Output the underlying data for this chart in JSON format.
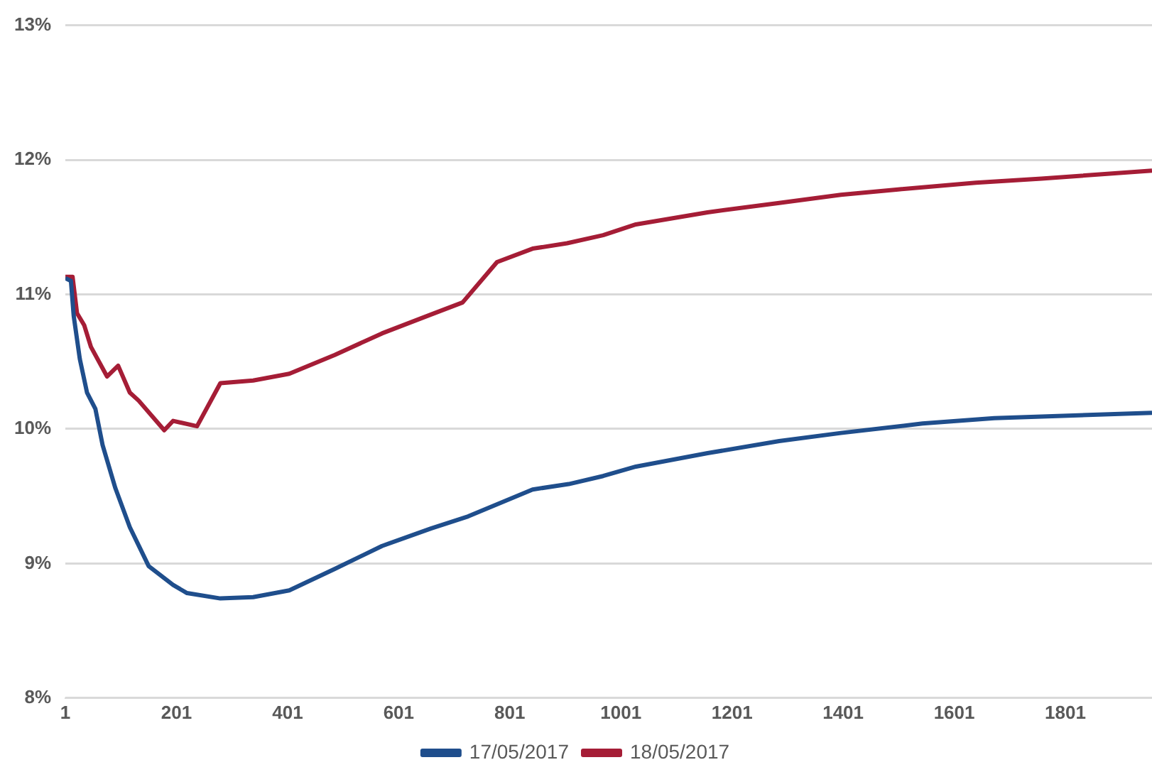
{
  "chart_data": {
    "type": "line",
    "xlim": [
      1,
      1957
    ],
    "xticks": [
      1,
      201,
      401,
      601,
      801,
      1001,
      1201,
      1401,
      1601,
      1801
    ],
    "ylim": [
      8,
      13
    ],
    "yticks": [
      {
        "value": 8,
        "label": "8%"
      },
      {
        "value": 9,
        "label": "9%"
      },
      {
        "value": 10,
        "label": "10%"
      },
      {
        "value": 11,
        "label": "11%"
      },
      {
        "value": 12,
        "label": "12%"
      },
      {
        "value": 13,
        "label": "13%"
      }
    ],
    "grid": "y",
    "legend": "bottom",
    "marker": "none",
    "line_style": "solid",
    "series": [
      {
        "name": "17/05/2017",
        "color": "#1f4e8c",
        "x": [
          1,
          11,
          16,
          27,
          40,
          55,
          68,
          91,
          117,
          151,
          195,
          220,
          280,
          339,
          404,
          486,
          571,
          659,
          726,
          842,
          907,
          969,
          1028,
          1157,
          1286,
          1397,
          1544,
          1673,
          1957
        ],
        "values": [
          11.12,
          11.1,
          10.84,
          10.52,
          10.27,
          10.15,
          9.88,
          9.56,
          9.27,
          8.98,
          8.84,
          8.78,
          8.74,
          8.75,
          8.8,
          8.96,
          9.13,
          9.26,
          9.35,
          9.55,
          9.59,
          9.65,
          9.72,
          9.82,
          9.91,
          9.97,
          10.04,
          10.08,
          10.12
        ]
      },
      {
        "name": "18/05/2017",
        "color": "#a51d36",
        "x": [
          1,
          14,
          22,
          35,
          47,
          76,
          96,
          117,
          133,
          179,
          195,
          238,
          280,
          339,
          404,
          486,
          571,
          659,
          716,
          778,
          842,
          904,
          969,
          1028,
          1157,
          1286,
          1397,
          1500,
          1640,
          1758,
          1957
        ],
        "values": [
          11.13,
          11.13,
          10.86,
          10.77,
          10.61,
          10.39,
          10.47,
          10.27,
          10.21,
          9.99,
          10.06,
          10.02,
          10.34,
          10.36,
          10.41,
          10.55,
          10.71,
          10.85,
          10.94,
          11.24,
          11.34,
          11.38,
          11.44,
          11.52,
          11.61,
          11.68,
          11.74,
          11.78,
          11.83,
          11.86,
          11.92
        ]
      }
    ]
  }
}
